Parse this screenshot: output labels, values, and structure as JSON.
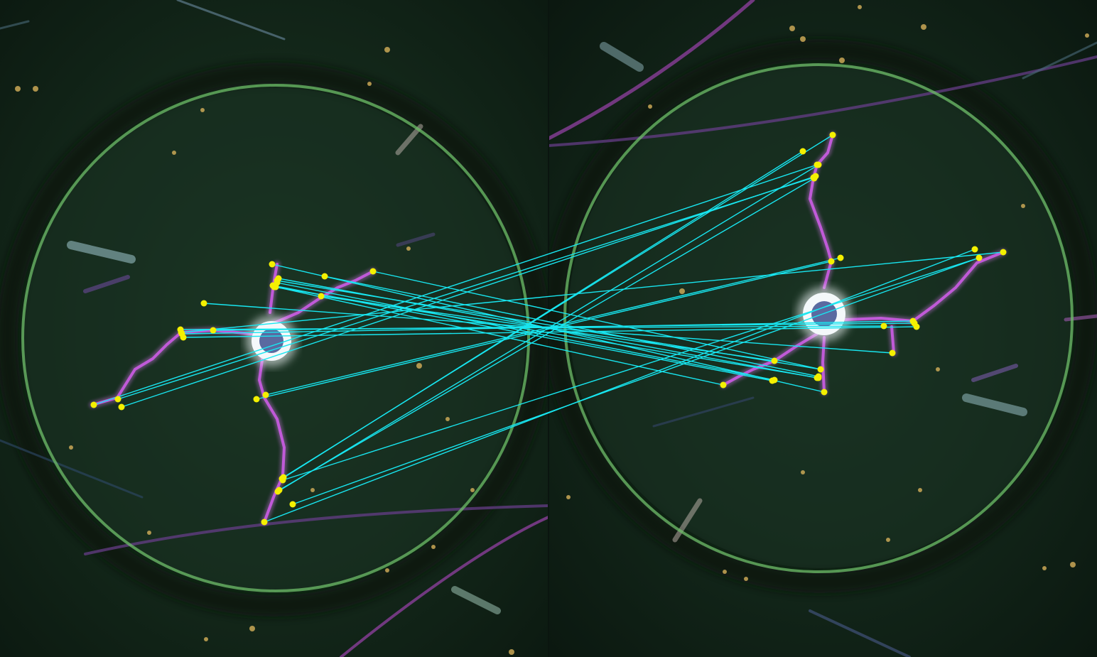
{
  "image": {
    "description_tag": "feature-match-visualization",
    "panels": [
      {
        "name": "left-micrograph"
      },
      {
        "name": "right-micrograph"
      }
    ]
  },
  "colors": {
    "background": "#13271b",
    "background_dark": "#0a150f",
    "ring": "#6fbf6a",
    "dark_halo": "#0d1a10",
    "crack": "#b54fd0",
    "crack_glow": "#d879f0",
    "center_glow": "#f2f6f8",
    "center_core": "#5a6aa0",
    "match_line": "#18e6f0",
    "keypoint": "#f4f000",
    "fiber": "#7a4a9a",
    "speckle": "#d6b05a"
  },
  "matches": {
    "count": 28
  }
}
